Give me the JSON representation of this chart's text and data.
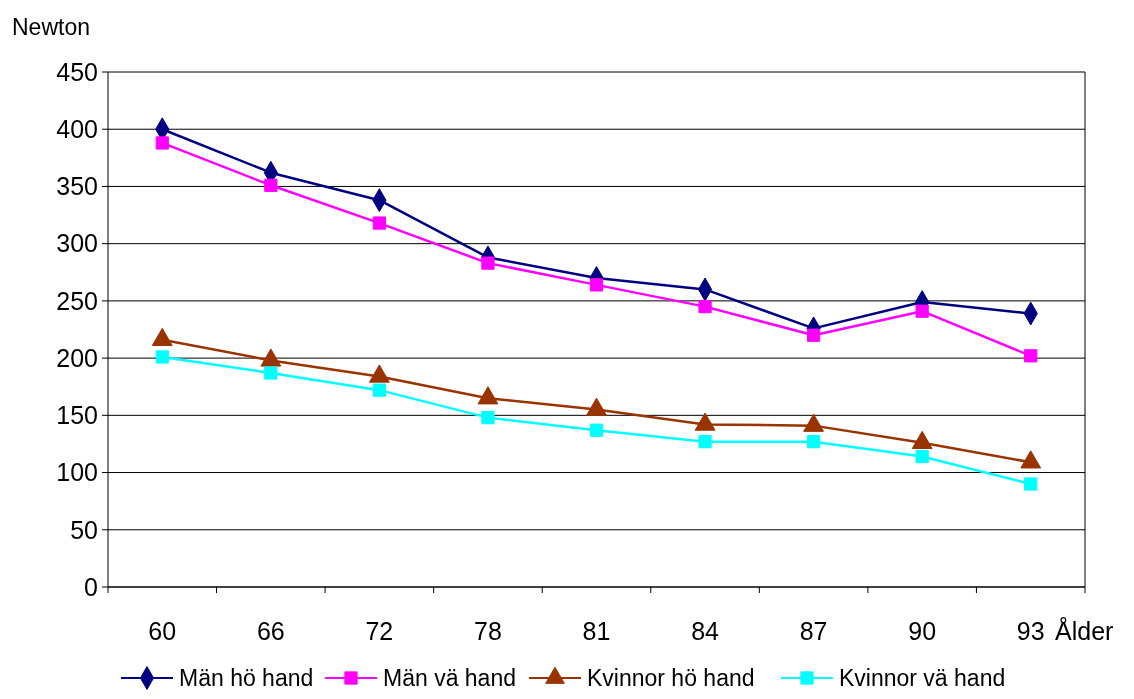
{
  "chart_data": {
    "type": "line",
    "ylabel": "Newton",
    "xlabel": "Ålder",
    "categories": [
      "60",
      "66",
      "72",
      "78",
      "81",
      "84",
      "87",
      "90",
      "93"
    ],
    "ylim": [
      0,
      450
    ],
    "yticks": [
      0,
      50,
      100,
      150,
      200,
      250,
      300,
      350,
      400,
      450
    ],
    "grid": "y",
    "legend": "bottom",
    "series": [
      {
        "name": "Män hö hand",
        "color": "#000080",
        "marker": "diamond",
        "values": [
          400,
          362,
          338,
          288,
          270,
          260,
          226,
          249,
          239
        ]
      },
      {
        "name": "Män vä hand",
        "color": "#ff00ff",
        "marker": "square",
        "values": [
          388,
          351,
          318,
          283,
          264,
          245,
          220,
          241,
          202
        ]
      },
      {
        "name": "Kvinnor hö hand",
        "color": "#993300",
        "marker": "triangle",
        "values": [
          216,
          198,
          184,
          165,
          155,
          142,
          141,
          126,
          109
        ]
      },
      {
        "name": "Kvinnor vä hand",
        "color": "#00ffff",
        "marker": "square",
        "values": [
          201,
          187,
          172,
          148,
          137,
          127,
          127,
          114,
          90
        ]
      }
    ]
  }
}
